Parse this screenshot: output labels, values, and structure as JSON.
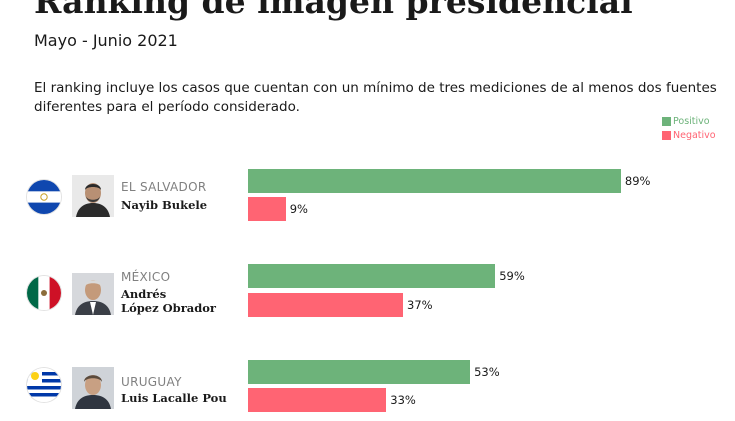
{
  "header": {
    "title": "Ranking de imagen presidencial",
    "subtitle": "Mayo - Junio 2021",
    "note": "El ranking incluye los casos que cuentan con un mínimo de tres mediciones de al menos dos fuentes diferentes para el período considerado."
  },
  "legend": {
    "positive": "Positivo",
    "negative": "Negativo"
  },
  "colors": {
    "positive": "#6db37a",
    "negative": "#ff6473"
  },
  "chart_data": {
    "type": "bar",
    "orientation": "horizontal",
    "categories": [
      "Nayib Bukele",
      "Andrés López Obrador",
      "Luis Lacalle Pou"
    ],
    "series": [
      {
        "name": "Positivo",
        "values": [
          89,
          59,
          53
        ]
      },
      {
        "name": "Negativo",
        "values": [
          9,
          37,
          33
        ]
      }
    ],
    "value_suffix": "%",
    "xlim": [
      0,
      100
    ],
    "legend_position": "top-right",
    "grid": false
  },
  "rows": [
    {
      "country": "EL SALVADOR",
      "name_lines": [
        "Nayib Bukele"
      ],
      "positive": 89,
      "negative": 9,
      "positive_label": "89%",
      "negative_label": "9%",
      "flag": "el-salvador-flag",
      "photo": "nayib-bukele-photo"
    },
    {
      "country": "MÉXICO",
      "name_lines": [
        "Andrés",
        "López Obrador"
      ],
      "positive": 59,
      "negative": 37,
      "positive_label": "59%",
      "negative_label": "37%",
      "flag": "mexico-flag",
      "photo": "andres-lopez-obrador-photo"
    },
    {
      "country": "URUGUAY",
      "name_lines": [
        "Luis Lacalle Pou"
      ],
      "positive": 53,
      "negative": 33,
      "positive_label": "53%",
      "negative_label": "33%",
      "flag": "uruguay-flag",
      "photo": "luis-lacalle-pou-photo"
    }
  ]
}
